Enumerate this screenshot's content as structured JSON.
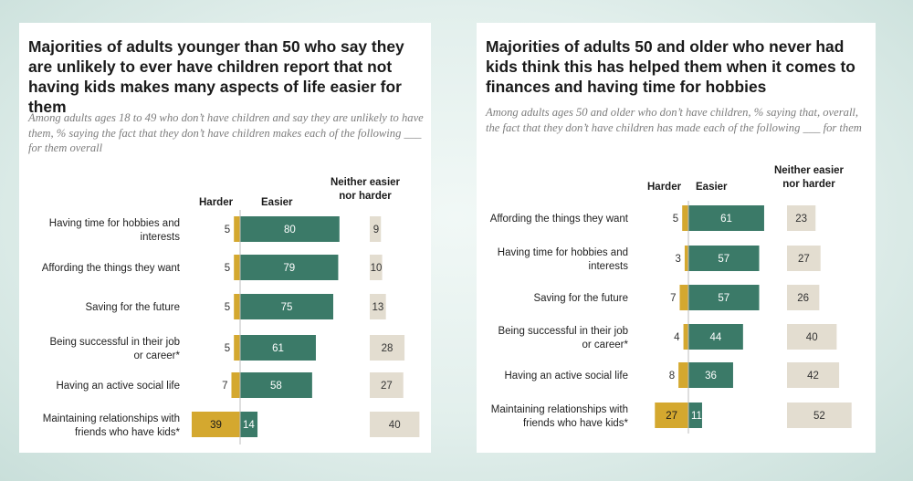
{
  "colors": {
    "harder": "#d4a82f",
    "easier": "#3b7a68",
    "neither": "#e3ddd0",
    "axis": "#bdbdbd"
  },
  "chart_data": [
    {
      "type": "bar",
      "title": "Majorities of adults younger than 50 who say they are unlikely to ever have children report that not having kids makes many aspects of life easier for them",
      "subtitle": "Among adults ages 18 to 49 who don’t have children and say they are unlikely to have them, % saying the fact that they don’t have children makes each of the following ___ for them overall",
      "column_headers": {
        "harder": "Harder",
        "easier": "Easier",
        "neither": "Neither easier nor harder"
      },
      "categories": [
        [
          "Having time for hobbies and",
          "interests"
        ],
        [
          "Affording the things they want"
        ],
        [
          "Saving for the future"
        ],
        [
          "Being successful in their job",
          "or career*"
        ],
        [
          "Having an active social life"
        ],
        [
          "Maintaining relationships with",
          "friends who have kids*"
        ]
      ],
      "series": [
        {
          "name": "Harder",
          "values": [
            5,
            5,
            5,
            5,
            7,
            39
          ]
        },
        {
          "name": "Easier",
          "values": [
            80,
            79,
            75,
            61,
            58,
            14
          ]
        },
        {
          "name": "Neither easier nor harder",
          "values": [
            9,
            10,
            13,
            28,
            27,
            40
          ]
        }
      ],
      "xlim": [
        0,
        100
      ]
    },
    {
      "type": "bar",
      "title": "Majorities of adults 50 and older who never had kids think this has helped them when it comes to finances and having time for hobbies",
      "subtitle": "Among adults ages 50 and older who don’t have children, % saying that, overall, the fact that they don’t have children has made each of the following ___ for them",
      "column_headers": {
        "harder": "Harder",
        "easier": "Easier",
        "neither": "Neither easier nor harder"
      },
      "categories": [
        [
          "Affording the things they want"
        ],
        [
          "Having time for hobbies and",
          "interests"
        ],
        [
          "Saving for the future"
        ],
        [
          "Being successful in their job",
          "or career*"
        ],
        [
          "Having an active social life"
        ],
        [
          "Maintaining relationships with",
          "friends who have kids*"
        ]
      ],
      "series": [
        {
          "name": "Harder",
          "values": [
            5,
            3,
            7,
            4,
            8,
            27
          ]
        },
        {
          "name": "Easier",
          "values": [
            61,
            57,
            57,
            44,
            36,
            11
          ]
        },
        {
          "name": "Neither easier nor harder",
          "values": [
            23,
            27,
            26,
            40,
            42,
            52
          ]
        }
      ],
      "xlim": [
        0,
        100
      ]
    }
  ]
}
